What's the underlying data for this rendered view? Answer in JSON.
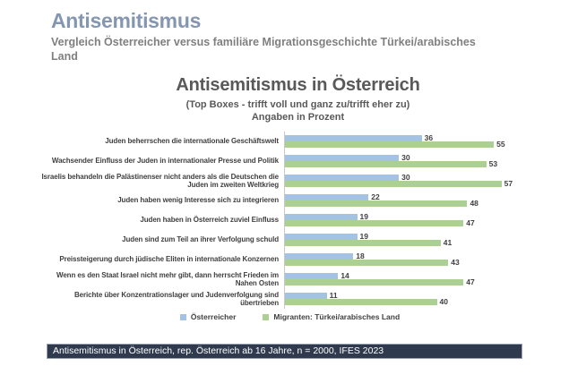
{
  "header": {
    "title": "Antisemitismus",
    "subtitle": "Vergleich Österreicher versus familiäre Migrationsgeschichte Türkei/arabisches Land"
  },
  "chart": {
    "title": "Antisemitismus in Österreich",
    "subtitle": "(Top Boxes - trifft voll und ganz zu/trifft eher zu)",
    "note": "Angaben in Prozent"
  },
  "chart_data": {
    "type": "bar",
    "orientation": "horizontal",
    "title": "Antisemitismus in Österreich",
    "subtitle": "(Top Boxes - trifft voll und ganz zu/trifft eher zu)",
    "unit_note": "Angaben in Prozent",
    "categories": [
      "Juden beherrschen die internationale Geschäftswelt",
      "Wachsender Einfluss der Juden in internationaler Presse und Politik",
      "Israelis behandeln die Palästinenser nicht anders als die Deutschen die Juden im zweiten Weltkrieg",
      "Juden haben wenig Interesse sich zu integrieren",
      "Juden haben in Österreich zuviel Einfluss",
      "Juden sind zum Teil an ihrer Verfolgung schuld",
      "Preissteigerung durch jüdische Eliten in internationale Konzernen",
      "Wenn es den Staat Israel nicht mehr gibt, dann herrscht Frieden im Nahen Osten",
      "Berichte über Konzentrationslager und Judenverfolgung sind übertrieben"
    ],
    "series": [
      {
        "name": "Österreicher",
        "color": "#a3c2e4",
        "values": [
          36,
          30,
          30,
          22,
          19,
          19,
          18,
          14,
          11
        ]
      },
      {
        "name": "Migranten: Türkei/arabisches Land",
        "color": "#accf93",
        "values": [
          55,
          53,
          57,
          48,
          47,
          41,
          43,
          47,
          40
        ]
      }
    ],
    "xlim": [
      0,
      67
    ],
    "value_labels": true,
    "grid": false,
    "legend_position": "bottom"
  },
  "footer": {
    "text": "Antisemitismus in Österreich, rep. Österreich ab 16 Jahre, n = 2000, IFES 2023"
  },
  "colors": {
    "header_title": "#8496b0",
    "header_subtitle": "#7f7f7f",
    "chart_text": "#595959",
    "label_text": "#404040",
    "axis_line": "#c9c9c9",
    "footer_bg": "#2f3a4e",
    "series_blue": "#a3c2e4",
    "series_green": "#accf93"
  }
}
